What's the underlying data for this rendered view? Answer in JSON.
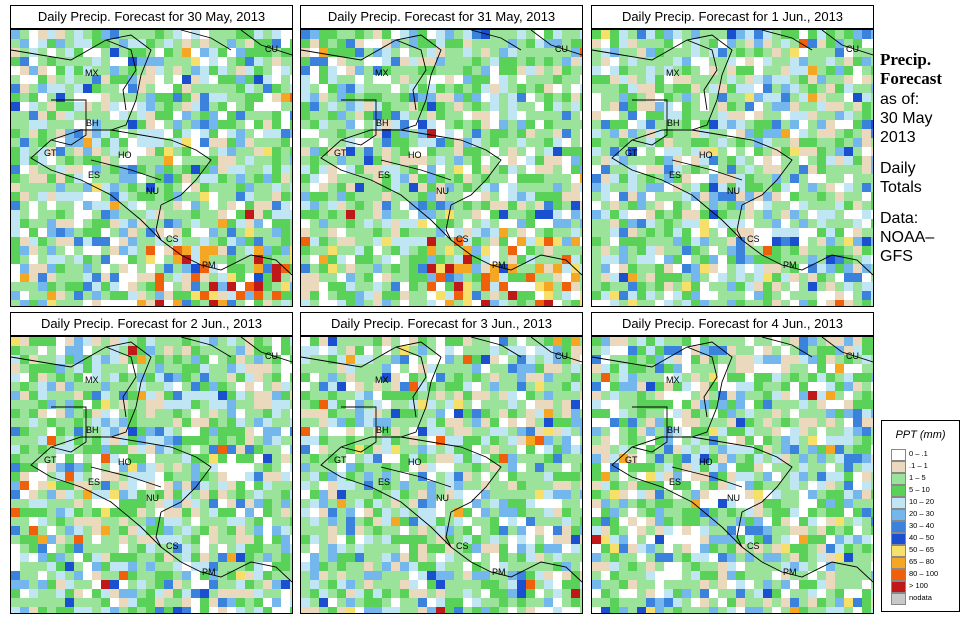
{
  "panels": [
    {
      "title": "Daily Precip. Forecast for  30 May, 2013",
      "seed": 11
    },
    {
      "title": "Daily Precip. Forecast for  31 May, 2013",
      "seed": 23
    },
    {
      "title": "Daily Precip. Forecast for  1 Jun., 2013",
      "seed": 37
    },
    {
      "title": "Daily Precip. Forecast for  2 Jun., 2013",
      "seed": 41
    },
    {
      "title": "Daily Precip. Forecast for  3 Jun., 2013",
      "seed": 53
    },
    {
      "title": "Daily Precip. Forecast for  4 Jun., 2013",
      "seed": 67
    }
  ],
  "country_labels": [
    "MX",
    "BH",
    "GT",
    "HO",
    "ES",
    "NU",
    "CS",
    "PM",
    "CU"
  ],
  "sidebar": {
    "line1": "Precip.",
    "line2": "Forecast",
    "line3": "as of:",
    "line4": "30 May",
    "line5": "2013",
    "line6": "Daily",
    "line7": "Totals",
    "line8": "Data:",
    "line9": "NOAA–",
    "line10": "GFS"
  },
  "legend": {
    "title": "PPT (mm)",
    "items": [
      {
        "label": "0 – .1",
        "color": "#ffffff"
      },
      {
        "label": ".1 – 1",
        "color": "#ead9bd"
      },
      {
        "label": "1 – 5",
        "color": "#9be39b"
      },
      {
        "label": "5 – 10",
        "color": "#5ad25a"
      },
      {
        "label": "10 – 20",
        "color": "#bfe6f2"
      },
      {
        "label": "20 – 30",
        "color": "#73b7ec"
      },
      {
        "label": "30 – 40",
        "color": "#3a82dc"
      },
      {
        "label": "40 – 50",
        "color": "#1a4fcf"
      },
      {
        "label": "50 – 65",
        "color": "#f7e06a"
      },
      {
        "label": "65 – 80",
        "color": "#f5a623"
      },
      {
        "label": "80 – 100",
        "color": "#f0600a"
      },
      {
        "label": "> 100",
        "color": "#c01818"
      },
      {
        "label": "nodata",
        "color": "#c8c8c8"
      }
    ]
  }
}
